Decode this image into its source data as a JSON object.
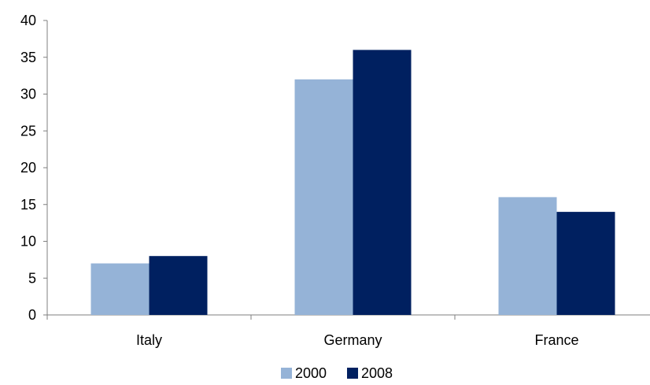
{
  "chart_data": {
    "type": "bar",
    "title": "",
    "xlabel": "",
    "ylabel": "",
    "categories": [
      "Italy",
      "Germany",
      "France"
    ],
    "series": [
      {
        "name": "2000",
        "values": [
          7,
          32,
          16
        ],
        "color": "#95b3d7"
      },
      {
        "name": "2008",
        "values": [
          8,
          36,
          14
        ],
        "color": "#002060"
      }
    ],
    "ylim": [
      0,
      40
    ],
    "yticks": [
      "0",
      "5",
      "10",
      "15",
      "20",
      "25",
      "30",
      "35",
      "40"
    ],
    "grid": false,
    "legend": "bottom-center"
  }
}
